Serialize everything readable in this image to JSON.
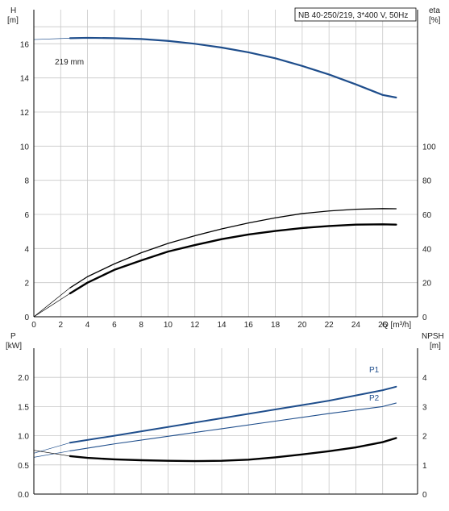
{
  "header_label": "NB 40-250/219, 3*400 V, 50Hz",
  "impeller_label": "219 mm",
  "colors": {
    "blue": "#1f4e8c",
    "black": "#000000",
    "grid": "#c8c8c8"
  },
  "chart_data": [
    {
      "type": "line",
      "name": "head_efficiency",
      "x_axis": {
        "label": "Q [m³/h]",
        "range": [
          0,
          28.6
        ],
        "ticks": [
          0,
          2,
          4,
          6,
          8,
          10,
          12,
          14,
          16,
          18,
          20,
          22,
          24,
          26
        ]
      },
      "y_left": {
        "label_top": "H",
        "label_unit": "[m]",
        "range": [
          0,
          18
        ],
        "ticks": [
          0,
          2,
          4,
          6,
          8,
          10,
          12,
          14,
          16
        ]
      },
      "y_right": {
        "label_top": "eta",
        "label_unit": "[%]",
        "range": [
          0,
          180
        ],
        "ticks": [
          0,
          20,
          40,
          60,
          80,
          100
        ]
      },
      "grid": true,
      "series": [
        {
          "name": "219 mm",
          "axis": "left",
          "color": "#1f4e8c",
          "x": [
            0,
            2.7,
            4,
            6,
            8,
            10,
            12,
            14,
            16,
            18,
            20,
            22,
            24,
            26,
            27
          ],
          "y": [
            16.25,
            16.33,
            16.35,
            16.33,
            16.28,
            16.17,
            16.0,
            15.78,
            15.5,
            15.15,
            14.7,
            14.2,
            13.62,
            13.0,
            12.85
          ]
        },
        {
          "axis": "right",
          "color": "#000000",
          "x": [
            0,
            2.7,
            4,
            6,
            8,
            10,
            12,
            14,
            16,
            18,
            20,
            22,
            24,
            26,
            27
          ],
          "y": [
            0,
            17,
            23.5,
            31,
            37.5,
            43,
            47.5,
            51.5,
            55,
            58,
            60.5,
            62,
            63,
            63.4,
            63.3
          ]
        },
        {
          "axis": "left",
          "color": "#000000",
          "x": [
            0,
            2.7,
            4,
            6,
            8,
            10,
            12,
            14,
            16,
            18,
            20,
            22,
            24,
            26,
            27
          ],
          "y": [
            0,
            1.37,
            2.0,
            2.75,
            3.3,
            3.82,
            4.2,
            4.55,
            4.82,
            5.03,
            5.2,
            5.32,
            5.4,
            5.42,
            5.4
          ]
        }
      ]
    },
    {
      "type": "line",
      "name": "power_npsh",
      "x_axis": {
        "range": [
          0,
          28.6
        ]
      },
      "y_left": {
        "label_top": "P",
        "label_unit": "[kW]",
        "range": [
          0,
          2.5
        ],
        "ticks": [
          0.0,
          0.5,
          1.0,
          1.5,
          2.0
        ]
      },
      "y_right": {
        "label_top": "NPSH",
        "label_unit": "[m]",
        "range": [
          0,
          5
        ],
        "ticks": [
          0,
          1,
          2,
          3,
          4
        ]
      },
      "grid": true,
      "series": [
        {
          "name": "P1",
          "axis": "left",
          "color": "#1f4e8c",
          "x": [
            0,
            2.7,
            6,
            10,
            14,
            18,
            22,
            26,
            27
          ],
          "y": [
            0.7,
            0.88,
            1.0,
            1.15,
            1.3,
            1.45,
            1.6,
            1.78,
            1.84
          ]
        },
        {
          "name": "P2",
          "axis": "left",
          "color": "#1f4e8c",
          "x": [
            0,
            2.7,
            6,
            10,
            14,
            18,
            22,
            26,
            27
          ],
          "y": [
            0.63,
            0.74,
            0.86,
            0.99,
            1.12,
            1.25,
            1.38,
            1.5,
            1.56
          ]
        },
        {
          "axis": "right",
          "color": "#000000",
          "x": [
            0,
            2.7,
            4,
            6,
            8,
            10,
            12,
            14,
            16,
            18,
            20,
            22,
            24,
            26,
            27
          ],
          "y": [
            1.5,
            1.3,
            1.24,
            1.19,
            1.16,
            1.14,
            1.13,
            1.14,
            1.18,
            1.26,
            1.36,
            1.47,
            1.6,
            1.78,
            1.92
          ]
        }
      ]
    }
  ]
}
